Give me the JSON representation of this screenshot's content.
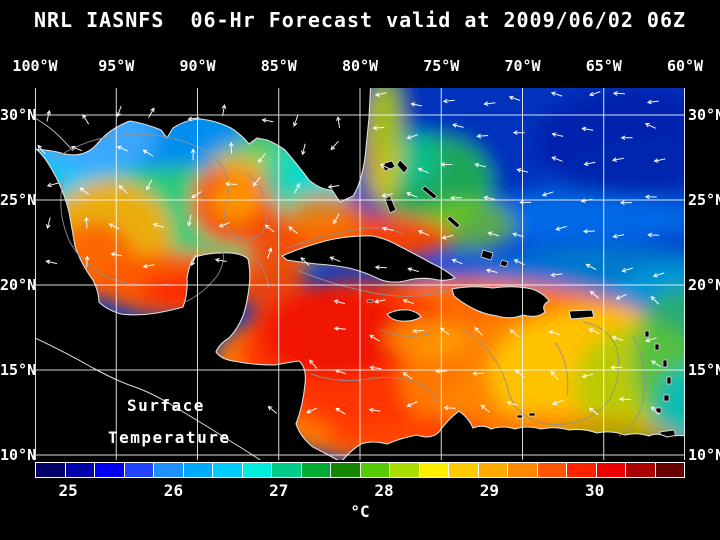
{
  "title": "NRL IASNFS  06-Hr Forecast valid at 2009/06/02 06Z",
  "map": {
    "lon_labels": [
      "100°W",
      "95°W",
      "90°W",
      "85°W",
      "80°W",
      "75°W",
      "70°W",
      "65°W",
      "60°W"
    ],
    "lat_labels_left": [
      "30°N",
      "25°N",
      "20°N",
      "15°N",
      "10°N"
    ],
    "lat_labels_right": [
      "30°N",
      "25°N",
      "20°N",
      "15°N",
      "10°N"
    ],
    "annotation": {
      "line1": "Surface",
      "line2": "Temperature"
    }
  },
  "colorbar": {
    "tick_labels": [
      "25",
      "26",
      "27",
      "28",
      "29",
      "30"
    ],
    "unit": "°C",
    "segment_colors": [
      "#000066",
      "#0000aa",
      "#0000ee",
      "#2244ff",
      "#1e90ff",
      "#00aaff",
      "#00ccff",
      "#00eedd",
      "#00cc88",
      "#00aa33",
      "#118800",
      "#55cc00",
      "#aadd00",
      "#ffee00",
      "#ffcc00",
      "#ffaa00",
      "#ff8800",
      "#ff5500",
      "#ff2200",
      "#ee0000",
      "#aa0000",
      "#660000"
    ]
  },
  "chart_data": {
    "type": "heatmap",
    "title": "NRL IASNFS 06-Hr Forecast valid at 2009/06/02 06Z",
    "variable": "Surface Temperature",
    "units": "°C",
    "colorbar_ticks": [
      25,
      26,
      27,
      28,
      29,
      30
    ],
    "x_ticks": [
      "100°W",
      "95°W",
      "90°W",
      "85°W",
      "80°W",
      "75°W",
      "70°W",
      "65°W",
      "60°W"
    ],
    "y_ticks": [
      "30°N",
      "25°N",
      "20°N",
      "15°N",
      "10°N"
    ],
    "region": "Gulf of Mexico and Caribbean Sea"
  }
}
